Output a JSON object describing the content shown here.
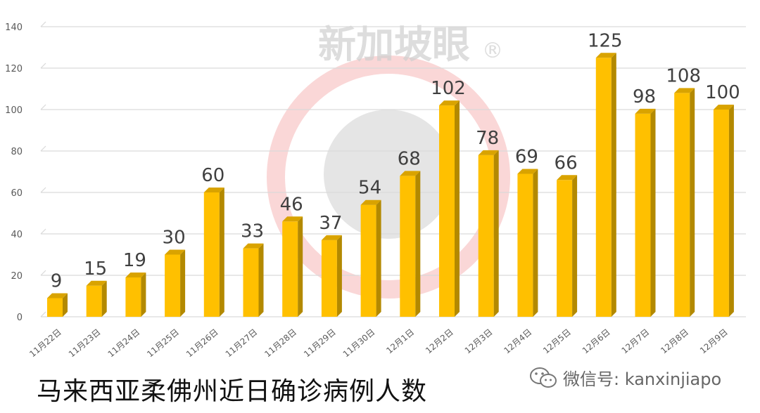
{
  "watermark": {
    "text": "新加坡眼",
    "mark": "®"
  },
  "caption": "马来西亚柔佛州近日确诊病例人数",
  "wechat": {
    "icon": "wechat-icon",
    "label": "微信号: kanxinjiapo"
  },
  "colors": {
    "bar_front": "#FFC000",
    "bar_side": "#B38900",
    "bar_top": "#D9A300",
    "grid": "#D9D9D9",
    "label": "#404040"
  },
  "chart_data": {
    "type": "bar",
    "title": "",
    "xlabel": "",
    "ylabel": "",
    "categories": [
      "11月22日",
      "11月23日",
      "11月24日",
      "11月25日",
      "11月26日",
      "11月27日",
      "11月28日",
      "11月29日",
      "11月30日",
      "12月1日",
      "12月2日",
      "12月3日",
      "12月4日",
      "12月5日",
      "12月6日",
      "12月7日",
      "12月8日",
      "12月9日"
    ],
    "values": [
      9,
      15,
      19,
      30,
      60,
      33,
      46,
      37,
      54,
      68,
      102,
      78,
      69,
      66,
      125,
      98,
      108,
      100
    ],
    "ylim": [
      0,
      140
    ],
    "yticks": [
      0,
      20,
      40,
      60,
      80,
      100,
      120,
      140
    ],
    "grid": true,
    "style": "3d-column",
    "data_labels": true
  }
}
